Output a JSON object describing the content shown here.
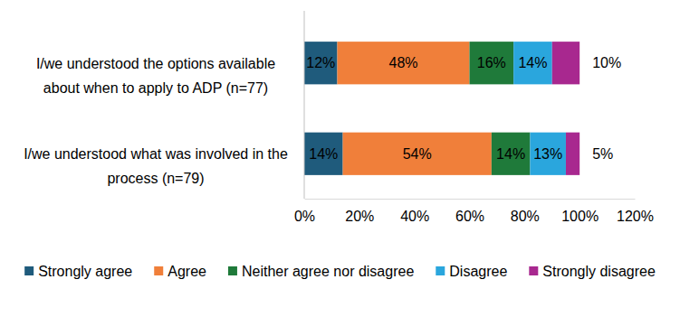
{
  "chart_data": {
    "type": "bar",
    "orientation": "horizontal",
    "stacked": true,
    "data_labels": true,
    "categories": [
      "I/we understood the options available about when to apply to ADP (n=77)",
      "I/we understood what was involved in the process (n=79)"
    ],
    "series": [
      {
        "name": "Strongly agree",
        "color": "#1f5b7c",
        "values": [
          12,
          14
        ],
        "value_labels": [
          "12%",
          "14%"
        ]
      },
      {
        "name": "Agree",
        "color": "#f07f3a",
        "values": [
          48,
          54
        ],
        "value_labels": [
          "48%",
          "54%"
        ]
      },
      {
        "name": "Neither agree nor disagree",
        "color": "#1f7a3a",
        "values": [
          16,
          14
        ],
        "value_labels": [
          "16%",
          "14%"
        ]
      },
      {
        "name": "Disagree",
        "color": "#2aa6dd",
        "values": [
          14,
          13
        ],
        "value_labels": [
          "14%",
          "13%"
        ]
      },
      {
        "name": "Strongly disagree",
        "color": "#a8288f",
        "values": [
          10,
          5
        ],
        "value_labels": [
          "10%",
          "5%"
        ]
      }
    ],
    "xlim": [
      0,
      120
    ],
    "xticks": [
      {
        "value": 0,
        "label": "0%"
      },
      {
        "value": 20,
        "label": "20%"
      },
      {
        "value": 40,
        "label": "40%"
      },
      {
        "value": 60,
        "label": "60%"
      },
      {
        "value": 80,
        "label": "80%"
      },
      {
        "value": 100,
        "label": "100%"
      },
      {
        "value": 120,
        "label": "120%"
      }
    ],
    "legend": "bottom"
  }
}
